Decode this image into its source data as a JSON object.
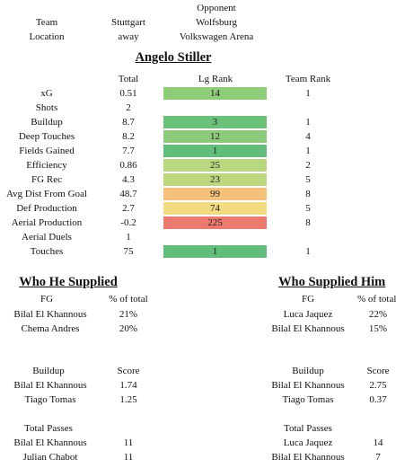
{
  "header": {
    "top_marks": [
      "-",
      "-"
    ],
    "opponent_label": "Opponent",
    "team_label": "Team",
    "team_value": "Stuttgart",
    "team_opponent": "Wolfsburg",
    "location_label": "Location",
    "location_value": "away",
    "location_opponent": "Volkswagen Arena"
  },
  "player": {
    "name": "Angelo Stiller",
    "col_total": "Total",
    "col_lg_rank": "Lg Rank",
    "col_team_rank": "Team Rank",
    "metrics": [
      {
        "label": "xG",
        "total": "0.51",
        "lg_rank": "14",
        "team_rank": "1",
        "color": "#8fcc78"
      },
      {
        "label": "Shots",
        "total": "2",
        "lg_rank": "",
        "team_rank": "",
        "color": ""
      },
      {
        "label": "Buildup",
        "total": "8.7",
        "lg_rank": "3",
        "team_rank": "1",
        "color": "#6cc17a"
      },
      {
        "label": "Deep Touches",
        "total": "8.2",
        "lg_rank": "12",
        "team_rank": "4",
        "color": "#8cc97a"
      },
      {
        "label": "Fields Gained",
        "total": "7.7",
        "lg_rank": "1",
        "team_rank": "1",
        "color": "#62bd7a"
      },
      {
        "label": "Efficiency",
        "total": "0.86",
        "lg_rank": "25",
        "team_rank": "2",
        "color": "#b8d77e"
      },
      {
        "label": "FG Rec",
        "total": "4.3",
        "lg_rank": "23",
        "team_rank": "5",
        "color": "#bcd87f"
      },
      {
        "label": "Avg Dist From Goal",
        "total": "48.7",
        "lg_rank": "99",
        "team_rank": "8",
        "color": "#f6c27b"
      },
      {
        "label": "Def Production",
        "total": "2.7",
        "lg_rank": "74",
        "team_rank": "5",
        "color": "#f3db81"
      },
      {
        "label": "Aerial Production",
        "total": "-0.2",
        "lg_rank": "225",
        "team_rank": "8",
        "color": "#ec7a6e"
      },
      {
        "label": "Aerial Duels",
        "total": "1",
        "lg_rank": "",
        "team_rank": "",
        "color": ""
      },
      {
        "label": "Touches",
        "total": "75",
        "lg_rank": "1",
        "team_rank": "1",
        "color": "#62bd7a"
      }
    ]
  },
  "supplied": {
    "title": "Who He Supplied",
    "fg_header": "FG",
    "pct_header": "% of total",
    "fg_rows": [
      {
        "name": "Bilal El Khannous",
        "value": "21%"
      },
      {
        "name": "Chema Andres",
        "value": "20%"
      }
    ],
    "buildup_header": "Buildup",
    "score_header": "Score",
    "buildup_rows": [
      {
        "name": "Bilal El Khannous",
        "value": "1.74"
      },
      {
        "name": "Tiago Tomas",
        "value": "1.25"
      }
    ],
    "passes_header": "Total Passes",
    "passes_rows": [
      {
        "name": "Bilal El Khannous",
        "value": "11"
      },
      {
        "name": "Julian Chabot",
        "value": "11"
      }
    ]
  },
  "supplied_him": {
    "title": "Who Supplied Him",
    "fg_header": "FG",
    "pct_header": "% of total",
    "fg_rows": [
      {
        "name": "Luca Jaquez",
        "value": "22%"
      },
      {
        "name": "Bilal El Khannous",
        "value": "15%"
      }
    ],
    "buildup_header": "Buildup",
    "score_header": "Score",
    "buildup_rows": [
      {
        "name": "Bilal El Khannous",
        "value": "2.75"
      },
      {
        "name": "Tiago Tomas",
        "value": "0.37"
      }
    ],
    "passes_header": "Total Passes",
    "passes_rows": [
      {
        "name": "Luca Jaquez",
        "value": "14"
      },
      {
        "name": "Bilal El Khannous",
        "value": "7"
      }
    ]
  }
}
